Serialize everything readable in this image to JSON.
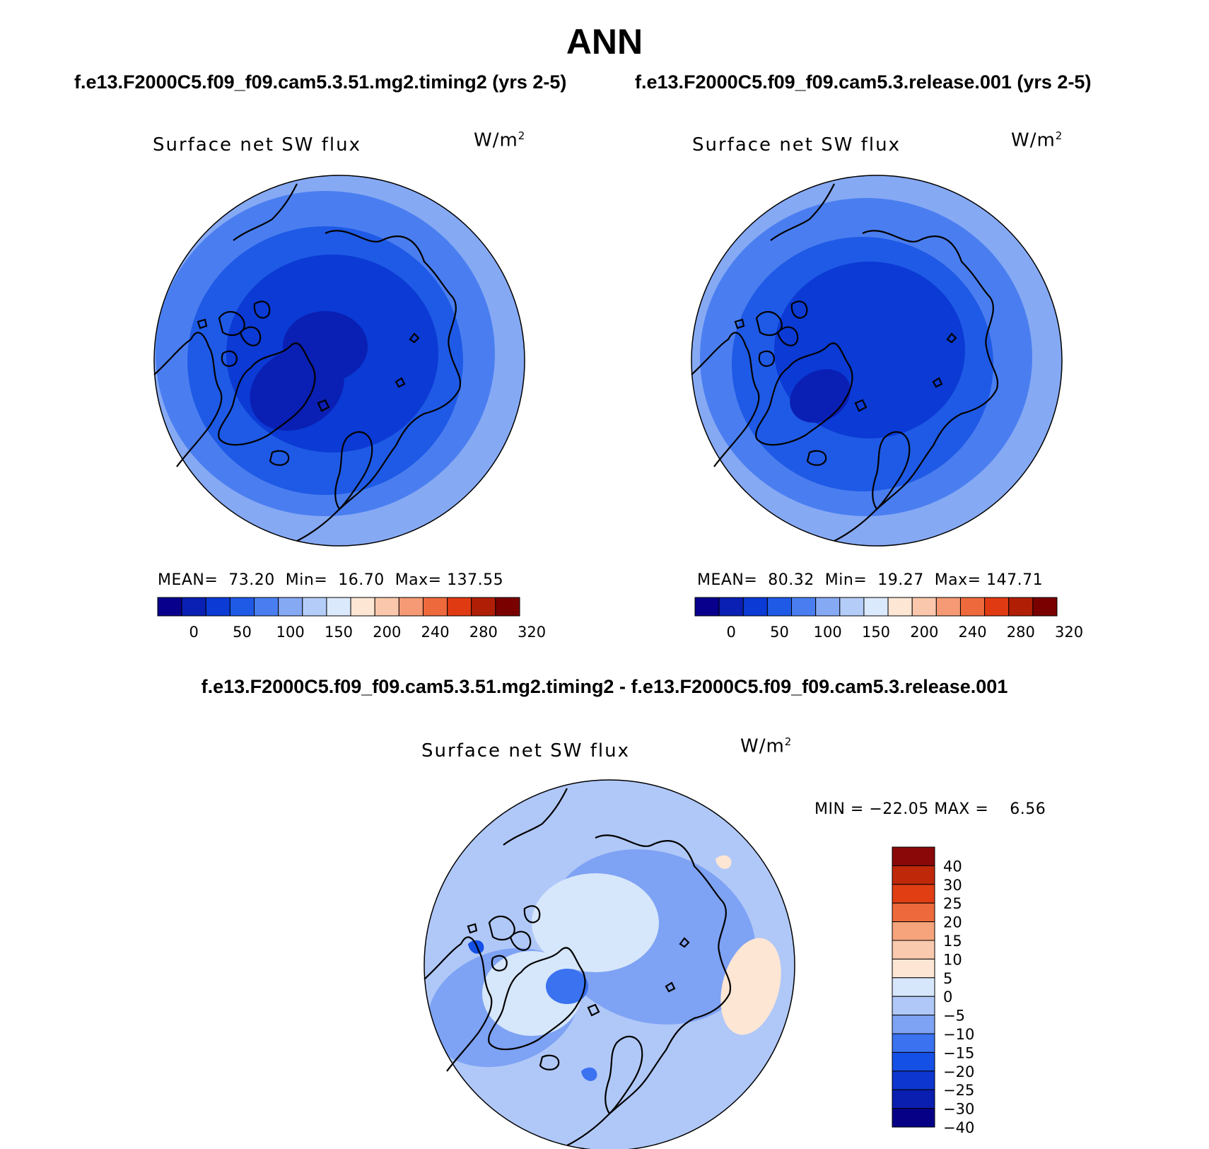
{
  "header": {
    "title": "ANN",
    "case1": "f.e13.F2000C5.f09_f09.cam5.3.51.mg2.timing2 (yrs 2-5)",
    "case2": "f.e13.F2000C5.f09_f09.cam5.3.release.001 (yrs 2-5)",
    "diff": "f.e13.F2000C5.f09_f09.cam5.3.51.mg2.timing2 - f.e13.F2000C5.f09_f09.cam5.3.release.001"
  },
  "panels": [
    {
      "variable": "Surface net SW flux",
      "units": "W/m",
      "units_sup": "2",
      "stats": "MEAN=  73.20  Min=  16.70  Max= 137.55"
    },
    {
      "variable": "Surface net SW flux",
      "units": "W/m",
      "units_sup": "2",
      "stats": "MEAN=  80.32  Min=  19.27  Max= 147.71"
    },
    {
      "variable": "Surface net SW flux",
      "units": "W/m",
      "units_sup": "2",
      "stats": "MIN = −22.05 MAX =    6.56"
    }
  ],
  "colors": {
    "main_palette": [
      "#08008c",
      "#0a1fb3",
      "#0b3ad4",
      "#1f5ae6",
      "#4a7ef0",
      "#86a9f4",
      "#b4cdf8",
      "#dbe9fc",
      "#fde6d4",
      "#fac7ac",
      "#f59a74",
      "#ee6a3c",
      "#e03a12",
      "#b01e06",
      "#7a0000"
    ],
    "diff_palette": [
      "#050086",
      "#0a1fb0",
      "#0c36cf",
      "#1550e6",
      "#3a72f0",
      "#7ea2f4",
      "#b0c8f8",
      "#d6e6fb",
      "#fde6d4",
      "#facaae",
      "#f6a47c",
      "#ee6a3c",
      "#e23e14",
      "#c0280a",
      "#8a0808"
    ]
  },
  "chart_data": [
    {
      "type": "heatmap",
      "projection": "north polar stereographic",
      "title": "Surface net SW flux",
      "units": "W/m2",
      "mean": 73.2,
      "min": 16.7,
      "max": 137.55,
      "colorbar": {
        "orientation": "horizontal",
        "tick_labels": [
          "0",
          "50",
          "100",
          "150",
          "200",
          "240",
          "280",
          "320"
        ]
      }
    },
    {
      "type": "heatmap",
      "projection": "north polar stereographic",
      "title": "Surface net SW flux",
      "units": "W/m2",
      "mean": 80.32,
      "min": 19.27,
      "max": 147.71,
      "colorbar": {
        "orientation": "horizontal",
        "tick_labels": [
          "0",
          "50",
          "100",
          "150",
          "200",
          "240",
          "280",
          "320"
        ]
      }
    },
    {
      "type": "heatmap",
      "projection": "north polar stereographic",
      "title": "Surface net SW flux",
      "units": "W/m2",
      "min": -22.05,
      "max": 6.56,
      "colorbar": {
        "orientation": "vertical",
        "tick_labels": [
          "40",
          "30",
          "25",
          "20",
          "15",
          "10",
          "5",
          "0",
          "−5",
          "−10",
          "−15",
          "−20",
          "−25",
          "−30",
          "−40"
        ]
      }
    }
  ]
}
